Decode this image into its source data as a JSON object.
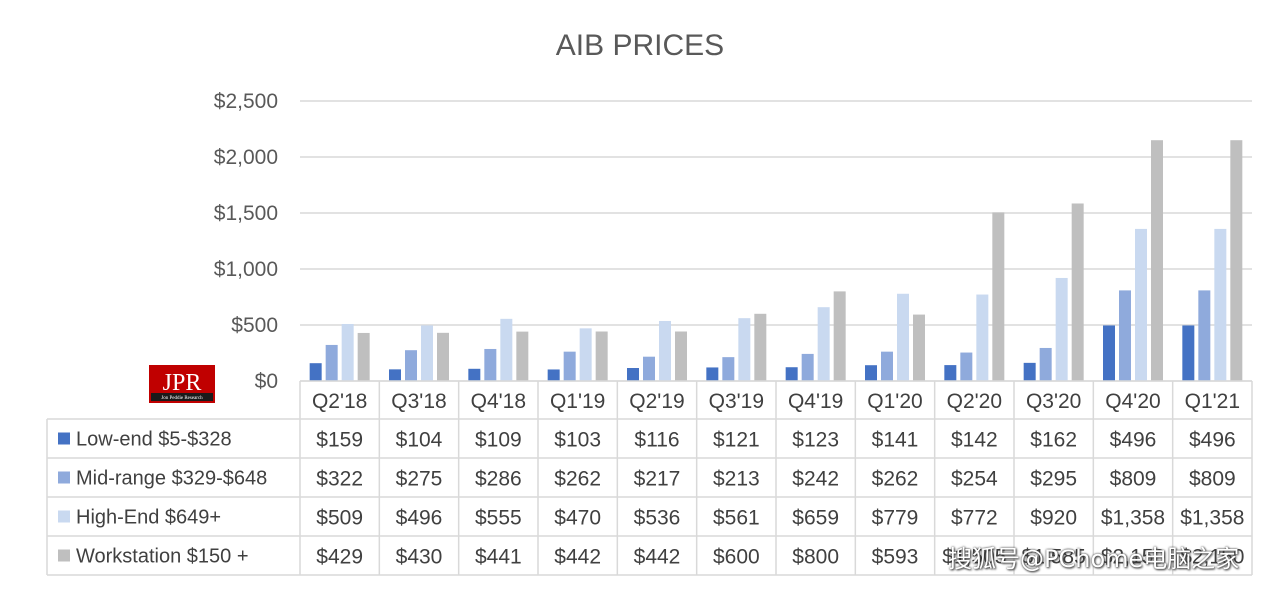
{
  "chart_data": {
    "type": "bar",
    "title": "AIB PRICES",
    "categories": [
      "Q2'18",
      "Q3'18",
      "Q4'18",
      "Q1'19",
      "Q2'19",
      "Q3'19",
      "Q4'19",
      "Q1'20",
      "Q2'20",
      "Q3'20",
      "Q4'20",
      "Q1'21"
    ],
    "ylim": [
      0,
      2500
    ],
    "yticks": [
      0,
      500,
      1000,
      1500,
      2000,
      2500
    ],
    "ytick_labels": [
      "$0",
      "$500",
      "$1,000",
      "$1,500",
      "$2,000",
      "$2,500"
    ],
    "grid": true,
    "legend_placement": "data-table-left",
    "series": [
      {
        "name": "Low-end $5-$328",
        "color": "#4472c4",
        "values": [
          159,
          104,
          109,
          103,
          116,
          121,
          123,
          141,
          142,
          162,
          496,
          496
        ],
        "labels": [
          "$159",
          "$104",
          "$109",
          "$103",
          "$116",
          "$121",
          "$123",
          "$141",
          "$142",
          "$162",
          "$496",
          "$496"
        ]
      },
      {
        "name": "Mid-range $329-$648",
        "color": "#8faadc",
        "values": [
          322,
          275,
          286,
          262,
          217,
          213,
          242,
          262,
          254,
          295,
          809,
          809
        ],
        "labels": [
          "$322",
          "$275",
          "$286",
          "$262",
          "$217",
          "$213",
          "$242",
          "$262",
          "$254",
          "$295",
          "$809",
          "$809"
        ]
      },
      {
        "name": "High-End $649+",
        "color": "#c9d9f0",
        "values": [
          509,
          496,
          555,
          470,
          536,
          561,
          659,
          779,
          772,
          920,
          1358,
          1358
        ],
        "labels": [
          "$509",
          "$496",
          "$555",
          "$470",
          "$536",
          "$561",
          "$659",
          "$779",
          "$772",
          "$920",
          "$1,358",
          "$1,358"
        ]
      },
      {
        "name": "Workstation $150 +",
        "color": "#bfbfbf",
        "values": [
          429,
          430,
          441,
          442,
          442,
          600,
          800,
          593,
          1505,
          1585,
          2150,
          2150
        ],
        "labels": [
          "$429",
          "$430",
          "$441",
          "$442",
          "$442",
          "$600",
          "$800",
          "$593",
          "$1,505",
          "$1,585",
          "$2,150",
          "$2,150"
        ]
      }
    ]
  },
  "logo": {
    "text": "JPR",
    "subtext": "Jon Peddie Research"
  },
  "watermark": "搜狐号@PChome电脑之家"
}
